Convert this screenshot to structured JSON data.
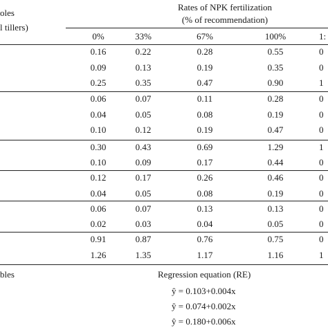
{
  "stub": {
    "line1": "oles",
    "line2": "l tillers)",
    "bottom": "bles"
  },
  "header": {
    "title_line1": "Rates of NPK fertilization",
    "title_line2": "(% of recommendation)",
    "columns": [
      "0%",
      "33%",
      "67%",
      "100%",
      "1:"
    ]
  },
  "rows": [
    [
      "0.16",
      "0.22",
      "0.28",
      "0.55",
      "0"
    ],
    [
      "0.09",
      "0.13",
      "0.19",
      "0.35",
      "0"
    ],
    [
      "0.25",
      "0.35",
      "0.47",
      "0.90",
      "1"
    ],
    [
      "0.06",
      "0.07",
      "0.11",
      "0.28",
      "0"
    ],
    [
      "0.04",
      "0.05",
      "0.08",
      "0.19",
      "0"
    ],
    [
      "0.10",
      "0.12",
      "0.19",
      "0.47",
      "0"
    ],
    [
      "0.30",
      "0.43",
      "0.69",
      "1.29",
      "1"
    ],
    [
      "0.10",
      "0.09",
      "0.17",
      "0.44",
      "0"
    ],
    [
      "0.12",
      "0.17",
      "0.26",
      "0.46",
      "0"
    ],
    [
      "0.04",
      "0.05",
      "0.08",
      "0.19",
      "0"
    ],
    [
      "0.06",
      "0.07",
      "0.13",
      "0.13",
      "0"
    ],
    [
      "0.02",
      "0.03",
      "0.04",
      "0.05",
      "0"
    ],
    [
      "0.91",
      "0.87",
      "0.76",
      "0.75",
      "0"
    ],
    [
      "1.26",
      "1.35",
      "1.17",
      "1.16",
      "1"
    ]
  ],
  "regression": {
    "title": "Regression equation (RE)",
    "equations": [
      "ŷ = 0.103+0.004x",
      "ŷ = 0.074+0.002x",
      "ŷ = 0.180+0.006x"
    ]
  }
}
